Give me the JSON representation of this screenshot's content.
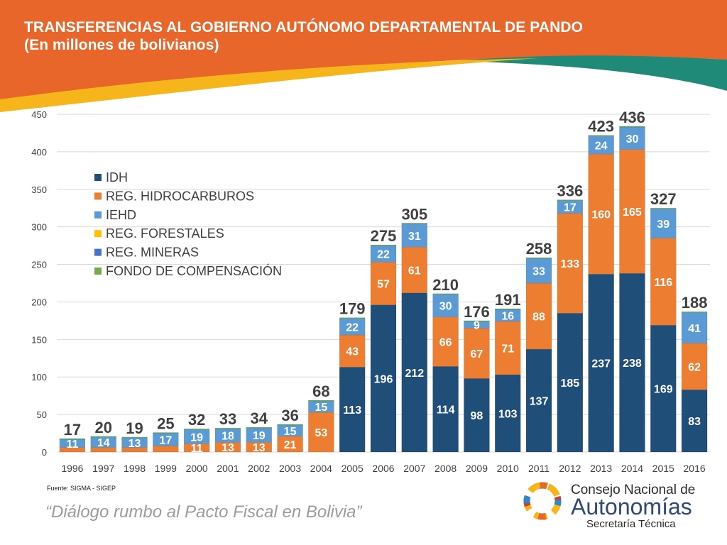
{
  "header": {
    "title_line1": "TRANSFERENCIAS AL GOBIERNO AUTÓNOMO DEPARTAMENTAL DE PANDO",
    "title_line2": "(En millones de bolivianos)"
  },
  "footer": {
    "source": "Fuente: SIGMA - SIGEP",
    "slogan": "“Diálogo rumbo al Pacto Fiscal en Bolivia”",
    "logo_line1": "Consejo Nacional de",
    "logo_line2": "Autonomías",
    "logo_line3": "Secretaría Técnica"
  },
  "colors": {
    "header_orange": "#e8662a",
    "header_teal": "#1f8a78",
    "header_yellow": "#f5b51b"
  },
  "chart_data": {
    "type": "bar",
    "stacked": true,
    "categories": [
      "1996",
      "1997",
      "1998",
      "1999",
      "2000",
      "2001",
      "2002",
      "2003",
      "2004",
      "2005",
      "2006",
      "2007",
      "2008",
      "2009",
      "2010",
      "2011",
      "2012",
      "2013",
      "2014",
      "2015",
      "2016"
    ],
    "ylim": [
      0,
      450
    ],
    "yticks": [
      0,
      50,
      100,
      150,
      200,
      250,
      300,
      350,
      400,
      450
    ],
    "grid": true,
    "legend_position": "top-left",
    "series": [
      {
        "name": "IDH",
        "color": "#1f4e79",
        "values": [
          0,
          0,
          0,
          0,
          0,
          0,
          0,
          0,
          0,
          113,
          196,
          212,
          114,
          98,
          103,
          137,
          185,
          237,
          238,
          169,
          83
        ],
        "labels": [
          null,
          null,
          null,
          null,
          null,
          null,
          null,
          null,
          null,
          "113",
          "196",
          "212",
          "114",
          "98",
          "103",
          "137",
          "185",
          "237",
          "238",
          "169",
          "83"
        ]
      },
      {
        "name": "REG. HIDROCARBUROS",
        "color": "#ed7d31",
        "values": [
          6,
          6,
          6,
          8,
          11,
          13,
          13,
          21,
          53,
          43,
          57,
          61,
          66,
          67,
          71,
          88,
          133,
          160,
          165,
          116,
          62
        ],
        "labels": [
          null,
          null,
          null,
          null,
          "11",
          "13",
          "13",
          "21",
          "53",
          "43",
          "57",
          "61",
          "66",
          "67",
          "71",
          "88",
          "133",
          "160",
          "165",
          "116",
          "62"
        ]
      },
      {
        "name": "IEHD",
        "color": "#5b9bd5",
        "values": [
          11,
          14,
          13,
          17,
          19,
          18,
          19,
          15,
          15,
          22,
          22,
          31,
          30,
          9,
          16,
          33,
          17,
          24,
          30,
          39,
          41
        ],
        "labels": [
          "11",
          "14",
          "13",
          "17",
          "19",
          "18",
          "19",
          "15",
          "15",
          "22",
          "22",
          "31",
          "30",
          "9",
          "16",
          "33",
          "17",
          "24",
          "30",
          "39",
          "41"
        ]
      },
      {
        "name": "REG. FORESTALES",
        "color": "#ffc000",
        "values": [
          0,
          0,
          0,
          0,
          0,
          0,
          0,
          0,
          0,
          0,
          0,
          0,
          0,
          0,
          0,
          0,
          0,
          0,
          0,
          0,
          0
        ],
        "labels": []
      },
      {
        "name": "REG. MINERAS",
        "color": "#4472c4",
        "values": [
          0,
          0,
          0,
          0,
          0,
          0,
          0,
          0,
          0,
          0,
          0,
          0,
          0,
          0,
          0,
          0,
          0,
          0,
          0,
          0,
          0
        ],
        "labels": []
      },
      {
        "name": "FONDO DE COMPENSACIÓN",
        "color": "#70ad47",
        "values": [
          1,
          1,
          1,
          1,
          1,
          1,
          1,
          1,
          1,
          1,
          1,
          1,
          1,
          1,
          1,
          1,
          1,
          1,
          1,
          1,
          1
        ],
        "labels": []
      }
    ],
    "totals": [
      17,
      20,
      19,
      25,
      32,
      33,
      34,
      36,
      68,
      179,
      275,
      305,
      210,
      176,
      191,
      258,
      336,
      423,
      436,
      327,
      188
    ]
  }
}
